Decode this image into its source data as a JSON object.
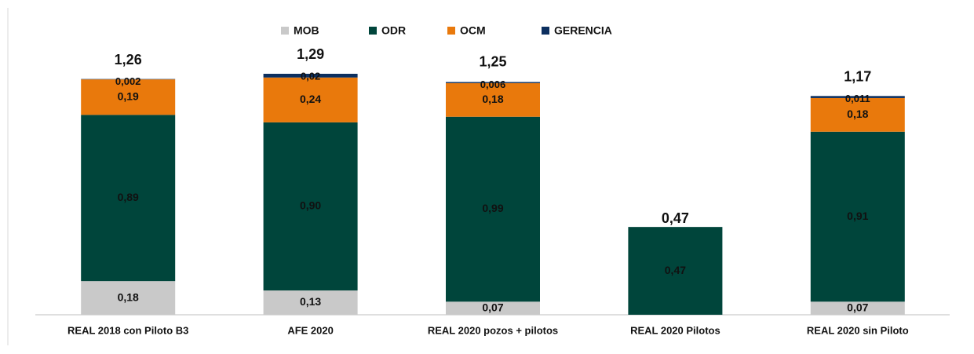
{
  "chart_data": {
    "type": "stacked-bar",
    "categories": [
      "REAL 2018 con Piloto B3",
      "AFE 2020",
      "REAL 2020 pozos + pilotos",
      "REAL 2020 Pilotos",
      "REAL 2020 sin Piloto"
    ],
    "series": [
      {
        "name": "MOB",
        "color": "#c9c9c9",
        "values": [
          0.18,
          0.13,
          0.07,
          null,
          0.07
        ],
        "value_labels": [
          "0,18",
          "0,13",
          "0,07",
          null,
          "0,07"
        ]
      },
      {
        "name": "ODR",
        "color": "#00453b",
        "values": [
          0.89,
          0.9,
          0.99,
          0.47,
          0.91
        ],
        "value_labels": [
          "0,89",
          "0,90",
          "0,99",
          "0,47",
          "0,91"
        ]
      },
      {
        "name": "OCM",
        "color": "#e9790c",
        "values": [
          0.19,
          0.24,
          0.18,
          null,
          0.18
        ],
        "value_labels": [
          "0,19",
          "0,24",
          "0,18",
          null,
          "0,18"
        ]
      },
      {
        "name": "GERENCIA",
        "color": "#0c2f5f",
        "values": [
          0.002,
          0.02,
          0.006,
          null,
          0.011
        ],
        "value_labels": [
          "0,002",
          "0,02",
          "0,006",
          null,
          "0,011"
        ]
      }
    ],
    "totals": [
      1.26,
      1.29,
      1.25,
      0.47,
      1.17
    ],
    "total_labels": [
      "1,26",
      "1,29",
      "1,25",
      "0,47",
      "1,17"
    ],
    "legend": "top"
  }
}
